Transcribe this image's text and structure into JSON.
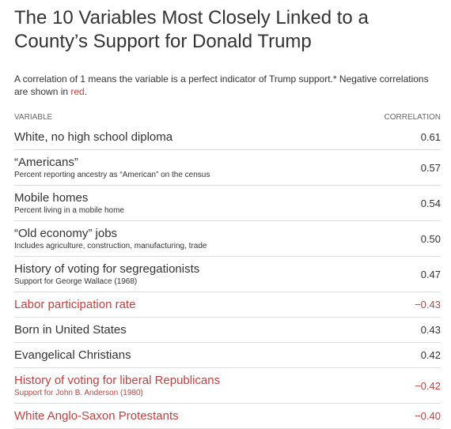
{
  "header": {
    "title": "The 10 Variables Most Closely Linked to a County’s Support for Donald Trump",
    "subtitle": [
      "A correlation of 1 means the variable is a perfect indicator of Trump support.* Negative correlations are shown in ",
      "red",
      "."
    ],
    "highlight_color": "#c4403f"
  },
  "table": {
    "columns": [
      "VARIABLE",
      "CORRELATION"
    ],
    "rows": [
      {
        "name": "White, no high school diploma",
        "note": null,
        "value": "0.61",
        "negative": false
      },
      {
        "name": "“Americans”",
        "note": "Percent reporting ancestry as “American” on the census",
        "value": "0.57",
        "negative": false
      },
      {
        "name": "Mobile homes",
        "note": "Percent living in a mobile home",
        "value": "0.54",
        "negative": false
      },
      {
        "name": "“Old economy” jobs",
        "note": "Includes agriculture, construction, manufacturing, trade",
        "value": "0.50",
        "negative": false
      },
      {
        "name": "History of voting for segregationists",
        "note": "Support for George Wallace (1968)",
        "value": "0.47",
        "negative": false
      },
      {
        "name": "Labor participation rate",
        "note": null,
        "value": "−0.43",
        "negative": true
      },
      {
        "name": "Born in United States",
        "note": null,
        "value": "0.43",
        "negative": false
      },
      {
        "name": "Evangelical Christians",
        "note": null,
        "value": "0.42",
        "negative": false
      },
      {
        "name": "History of voting for liberal Republicans",
        "note": "Support for John B. Anderson (1980)",
        "value": "−0.42",
        "negative": true
      },
      {
        "name": "White Anglo-Saxon Protestants",
        "note": null,
        "value": "−0.40",
        "negative": true
      }
    ]
  }
}
